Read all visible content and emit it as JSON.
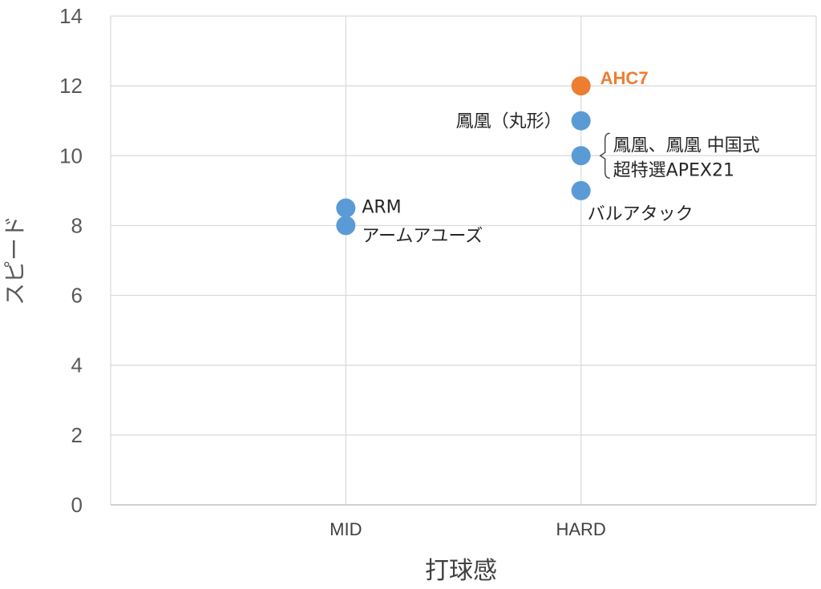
{
  "chart_data": {
    "type": "scatter",
    "xlabel": "打球感",
    "ylabel": "スピード",
    "categories": [
      "MID",
      "HARD"
    ],
    "xlim": [
      0,
      3
    ],
    "ylim": [
      0,
      14
    ],
    "yticks": [
      0,
      2,
      4,
      6,
      8,
      10,
      12,
      14
    ],
    "grid": true,
    "colors": {
      "default": "#5b9bd5",
      "highlight": "#ed7d31"
    },
    "points": [
      {
        "x": "MID",
        "y": 8.5,
        "label": "ARM",
        "highlight": false
      },
      {
        "x": "MID",
        "y": 8,
        "label": "アームアユーズ",
        "highlight": false
      },
      {
        "x": "HARD",
        "y": 12,
        "label": "AHC7",
        "highlight": true
      },
      {
        "x": "HARD",
        "y": 11,
        "label": "鳳凰（丸形）",
        "highlight": false
      },
      {
        "x": "HARD",
        "y": 10,
        "label": "鳳凰、鳳凰 中国式",
        "label2": "超特選APEX21",
        "highlight": false
      },
      {
        "x": "HARD",
        "y": 9,
        "label": "バルアタック",
        "highlight": false
      }
    ]
  }
}
